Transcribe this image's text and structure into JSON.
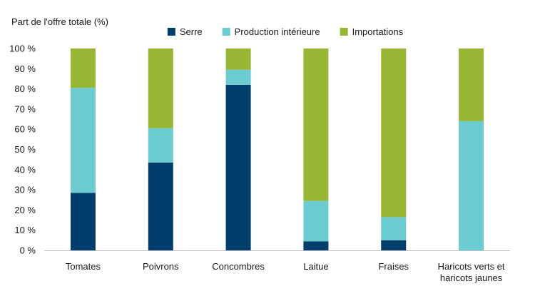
{
  "chart_data": {
    "type": "bar",
    "stacked": true,
    "ylabel": "Part de l'offre totale (%)",
    "ylim": [
      0,
      100
    ],
    "y_ticks": [
      0,
      10,
      20,
      30,
      40,
      50,
      60,
      70,
      80,
      90,
      100
    ],
    "y_tick_suffix": " %",
    "grid": false,
    "legend_position": "top",
    "categories": [
      [
        "Tomates"
      ],
      [
        "Poivrons"
      ],
      [
        "Concombres"
      ],
      [
        "Laitue"
      ],
      [
        "Fraises"
      ],
      [
        "Haricots verts et",
        "haricots jaunes"
      ]
    ],
    "series": [
      {
        "name": "Serre",
        "color": "#003f6b",
        "values": [
          28.5,
          43.5,
          82,
          4.5,
          5,
          0
        ]
      },
      {
        "name": "Production intérieure",
        "color": "#6ccad1",
        "values": [
          52,
          17,
          7.5,
          20,
          11.5,
          64
        ]
      },
      {
        "name": "Importations",
        "color": "#96b634",
        "values": [
          19.5,
          39.5,
          10.5,
          75.5,
          83.5,
          36
        ]
      }
    ]
  }
}
